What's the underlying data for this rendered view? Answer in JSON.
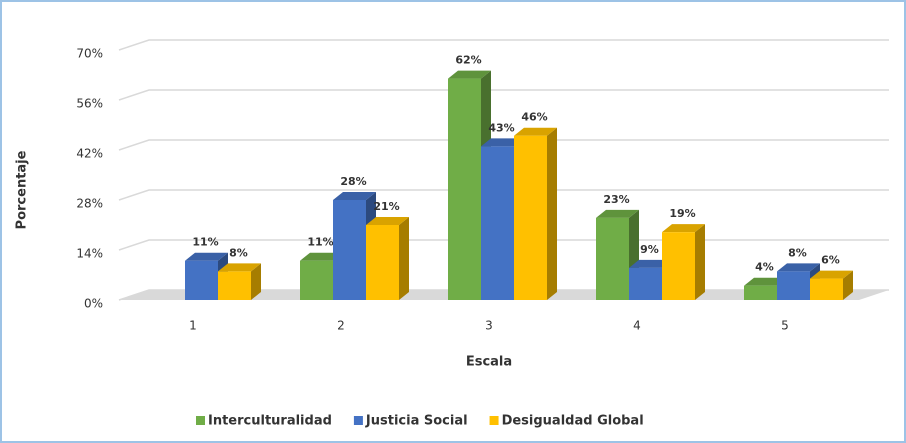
{
  "chart_data": {
    "type": "bar3d",
    "x_label": "Escala",
    "y_label": "Porcentaje",
    "categories": [
      "1",
      "2",
      "3",
      "4",
      "5"
    ],
    "series": [
      {
        "name": "Interculturalidad",
        "color": "#70ad47",
        "values": [
          null,
          11,
          62,
          23,
          4
        ],
        "value_labels": [
          null,
          "11%",
          "62%",
          "23%",
          "4%"
        ]
      },
      {
        "name": "Justicia Social",
        "color": "#4472c4",
        "values": [
          11,
          28,
          43,
          9,
          8
        ],
        "value_labels": [
          "11%",
          "28%",
          "43%",
          "9%",
          "8%"
        ]
      },
      {
        "name": "Desigualdad Global",
        "color": "#ffc000",
        "values": [
          8,
          21,
          46,
          19,
          6
        ],
        "value_labels": [
          "8%",
          "21%",
          "46%",
          "19%",
          "6%"
        ]
      }
    ],
    "ylim": [
      0,
      70
    ],
    "yticks": [
      {
        "value": 0,
        "label": "0%"
      },
      {
        "value": 14,
        "label": "14%"
      },
      {
        "value": 28,
        "label": "28%"
      },
      {
        "value": 42,
        "label": "42%"
      },
      {
        "value": 56,
        "label": "56%"
      },
      {
        "value": 70,
        "label": "70%"
      }
    ],
    "grid": true,
    "legend": "bottom"
  }
}
